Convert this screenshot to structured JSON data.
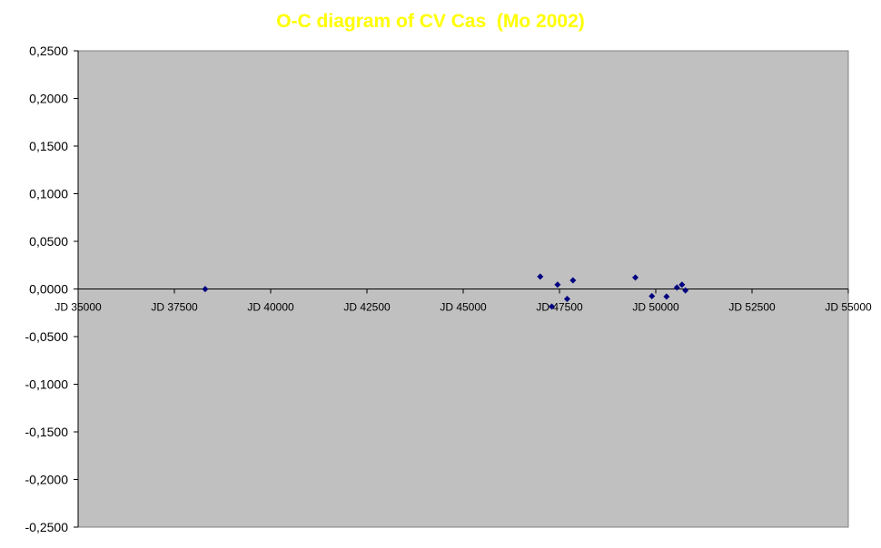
{
  "chart_data": {
    "type": "scatter",
    "title": "O-C diagram of CV Cas  (Mo 2002)",
    "xlabel": "",
    "ylabel": "",
    "xlim": [
      35000,
      55000
    ],
    "ylim": [
      -0.25,
      0.25
    ],
    "x_ticks": [
      35000,
      37500,
      40000,
      42500,
      45000,
      47500,
      50000,
      52500,
      55000
    ],
    "x_tick_labels": [
      "JD 35000",
      "JD 37500",
      "JD 40000",
      "JD 42500",
      "JD 45000",
      "JD 47500",
      "JD 50000",
      "JD 52500",
      "JD 55000"
    ],
    "y_ticks": [
      0.25,
      0.2,
      0.15,
      0.1,
      0.05,
      0.0,
      -0.05,
      -0.1,
      -0.15,
      -0.2,
      -0.25
    ],
    "y_tick_labels": [
      "0,2500",
      "0,2000",
      "0,1500",
      "0,1000",
      "0,0500",
      "0,0000",
      "-0,0500",
      "-0,1000",
      "-0,1500",
      "-0,2000",
      "-0,2500"
    ],
    "grid": false,
    "legend": "none",
    "colors": {
      "plot_background": "#c0c0c0",
      "marker": "#000080",
      "title": "#ffff00",
      "axis": "#000000"
    },
    "series": [
      {
        "marker": "diamond",
        "points": [
          {
            "x": 38300,
            "y": -0.0001
          },
          {
            "x": 47000,
            "y": 0.013
          },
          {
            "x": 47300,
            "y": -0.0185
          },
          {
            "x": 47450,
            "y": 0.0045
          },
          {
            "x": 47700,
            "y": -0.0105
          },
          {
            "x": 47850,
            "y": 0.009
          },
          {
            "x": 49470,
            "y": 0.012
          },
          {
            "x": 49900,
            "y": -0.0075
          },
          {
            "x": 50280,
            "y": -0.008
          },
          {
            "x": 50550,
            "y": 0.0015
          },
          {
            "x": 50680,
            "y": 0.0045
          },
          {
            "x": 50770,
            "y": -0.0015
          }
        ]
      }
    ]
  }
}
